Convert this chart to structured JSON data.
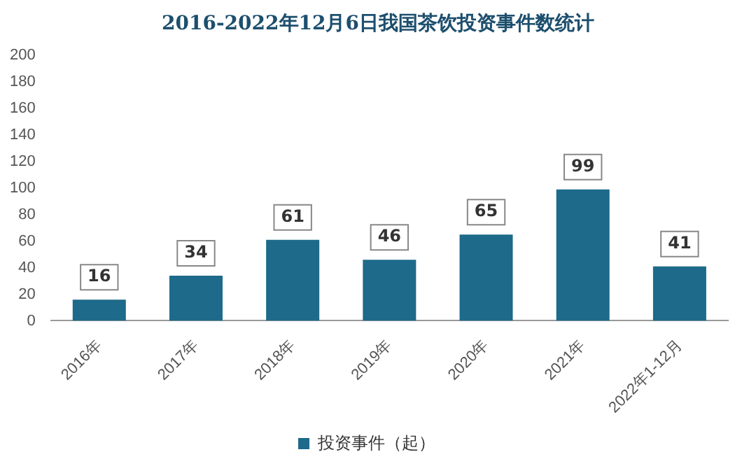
{
  "chart_data": {
    "type": "bar",
    "title": "2016-2022年12月6日我国茶饮投资事件数统计",
    "categories": [
      "2016年",
      "2017年",
      "2018年",
      "2019年",
      "2020年",
      "2021年",
      "2022年1-12月"
    ],
    "series": [
      {
        "name": "投资事件（起）",
        "color": "#1d6a8a",
        "values": [
          16,
          34,
          61,
          46,
          65,
          99,
          41
        ]
      }
    ],
    "ylim": [
      0,
      200
    ],
    "yticks": [
      0,
      20,
      40,
      60,
      80,
      100,
      120,
      140,
      160,
      180,
      200
    ],
    "grid": false,
    "legend": "bottom",
    "data_labels": true
  }
}
